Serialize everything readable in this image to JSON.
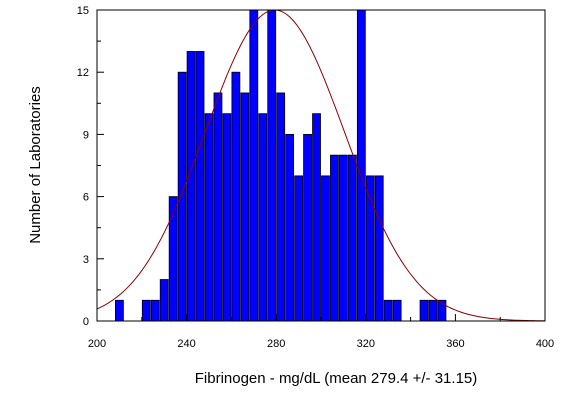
{
  "chart_data": {
    "type": "bar",
    "title": "",
    "xlabel": "Fibrinogen - mg/dL (mean 279.4 +/- 31.15)",
    "ylabel": "Number of Laboratories",
    "xlim": [
      200,
      400
    ],
    "ylim": [
      0,
      15
    ],
    "x_ticks": [
      200,
      240,
      280,
      320,
      360,
      400
    ],
    "x_tick_labels": [
      "200",
      "240",
      "280",
      "320",
      "360",
      "400"
    ],
    "y_ticks": [
      0,
      3,
      6,
      9,
      12,
      15
    ],
    "y_tick_labels": [
      "0",
      "3",
      "6",
      "9",
      "12",
      "15"
    ],
    "bin_width": 4,
    "bins": [
      {
        "start": 208,
        "count": 1
      },
      {
        "start": 212,
        "count": 0
      },
      {
        "start": 216,
        "count": 0
      },
      {
        "start": 220,
        "count": 1
      },
      {
        "start": 224,
        "count": 1
      },
      {
        "start": 228,
        "count": 2
      },
      {
        "start": 232,
        "count": 6
      },
      {
        "start": 236,
        "count": 12
      },
      {
        "start": 240,
        "count": 13
      },
      {
        "start": 244,
        "count": 13
      },
      {
        "start": 248,
        "count": 10
      },
      {
        "start": 252,
        "count": 11
      },
      {
        "start": 256,
        "count": 10
      },
      {
        "start": 260,
        "count": 12
      },
      {
        "start": 264,
        "count": 11
      },
      {
        "start": 268,
        "count": 15
      },
      {
        "start": 272,
        "count": 10
      },
      {
        "start": 276,
        "count": 15
      },
      {
        "start": 280,
        "count": 11
      },
      {
        "start": 284,
        "count": 9
      },
      {
        "start": 288,
        "count": 7
      },
      {
        "start": 292,
        "count": 9
      },
      {
        "start": 296,
        "count": 10
      },
      {
        "start": 300,
        "count": 7
      },
      {
        "start": 304,
        "count": 8
      },
      {
        "start": 308,
        "count": 8
      },
      {
        "start": 312,
        "count": 8
      },
      {
        "start": 316,
        "count": 15
      },
      {
        "start": 320,
        "count": 7
      },
      {
        "start": 324,
        "count": 7
      },
      {
        "start": 328,
        "count": 1
      },
      {
        "start": 332,
        "count": 1
      },
      {
        "start": 336,
        "count": 0
      },
      {
        "start": 340,
        "count": 0
      },
      {
        "start": 344,
        "count": 1
      },
      {
        "start": 348,
        "count": 1
      },
      {
        "start": 352,
        "count": 1
      }
    ],
    "normal_curve": {
      "mean": 279.4,
      "sd": 31.15,
      "peak": 15
    },
    "colors": {
      "bar_fill": "#0000ff",
      "bar_stroke": "#000000",
      "curve": "#8b0000",
      "axes": "#000000"
    },
    "grid": false,
    "legend": "none"
  }
}
